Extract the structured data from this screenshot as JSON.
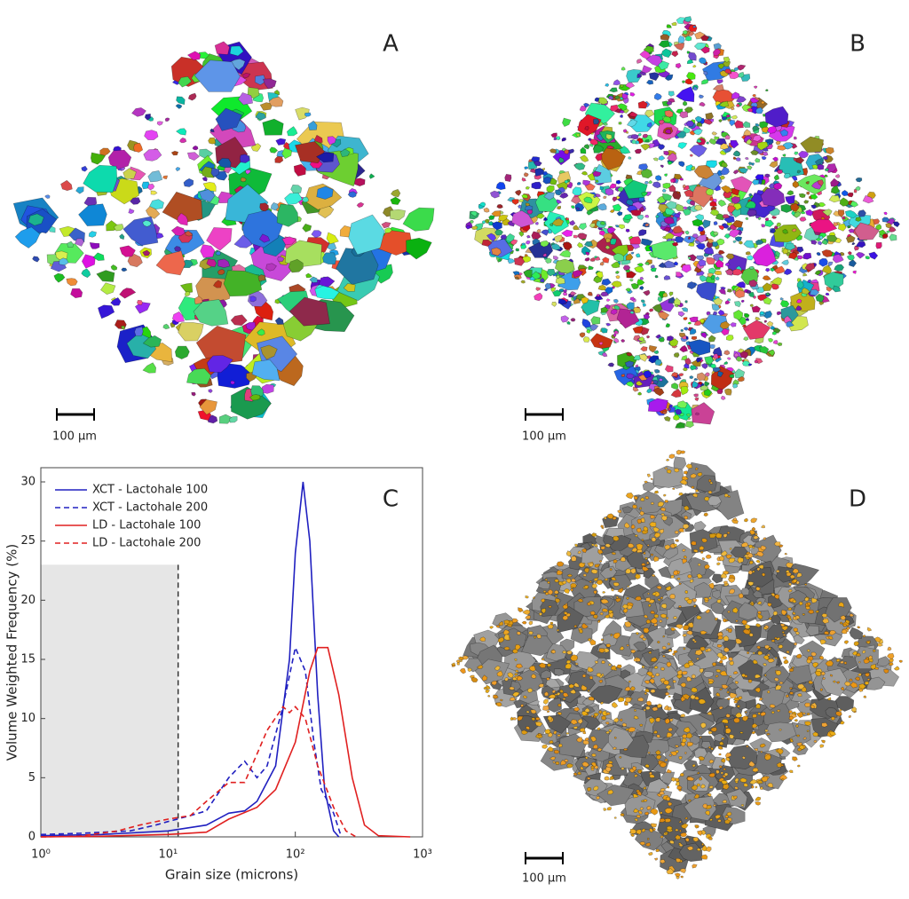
{
  "panels": {
    "a": {
      "label": "A",
      "scale_bar": "100 µm"
    },
    "b": {
      "label": "B",
      "scale_bar": "100 µm"
    },
    "d": {
      "label": "D",
      "scale_bar": "100 µm"
    }
  },
  "chart_data": {
    "type": "line",
    "label": "C",
    "xlabel": "Grain size (microns)",
    "ylabel": "Volume Weighted Frequency (%)",
    "xlog": true,
    "xlim": [
      1,
      1000
    ],
    "ylim": [
      0,
      31.2
    ],
    "xticks": [
      {
        "value": 1,
        "label": "10⁰"
      },
      {
        "value": 10,
        "label": "10¹"
      },
      {
        "value": 100,
        "label": "10²"
      },
      {
        "value": 1000,
        "label": "10³"
      }
    ],
    "yticks": [
      0,
      5,
      10,
      15,
      20,
      25,
      30
    ],
    "legend": "upper left",
    "shaded_region": {
      "xlim": [
        1,
        12
      ],
      "ylim": [
        0,
        23
      ],
      "color": "#e6e6e6"
    },
    "series": [
      {
        "name": "XCT - Lactohale 100",
        "color": "#2020c0",
        "dash": false,
        "x": [
          1,
          3,
          10,
          20,
          30,
          40,
          50,
          70,
          90,
          100,
          115,
          130,
          150,
          170,
          200,
          220
        ],
        "values": [
          0.1,
          0.2,
          0.5,
          1,
          2,
          2.2,
          3,
          6,
          15,
          24,
          30,
          25,
          12,
          4,
          0.5,
          0
        ]
      },
      {
        "name": "XCT - Lactohale 200",
        "color": "#2020c0",
        "dash": true,
        "x": [
          1,
          2,
          5,
          8,
          10,
          15,
          20,
          30,
          40,
          50,
          60,
          80,
          100,
          120,
          140,
          160,
          180,
          200,
          230
        ],
        "values": [
          0.2,
          0.3,
          0.5,
          1,
          1.3,
          1.8,
          2.2,
          5,
          6.4,
          5,
          6,
          11,
          16,
          14,
          8,
          4,
          3,
          2,
          0
        ]
      },
      {
        "name": "LD - Lactohale 100",
        "color": "#e02020",
        "dash": false,
        "x": [
          1,
          3,
          10,
          20,
          30,
          50,
          70,
          100,
          130,
          150,
          180,
          220,
          280,
          350,
          450,
          800
        ],
        "values": [
          0,
          0.05,
          0.2,
          0.4,
          1.5,
          2.5,
          4,
          8,
          14,
          16,
          16,
          12,
          5,
          1,
          0.1,
          0
        ]
      },
      {
        "name": "LD - Lactohale 200",
        "color": "#e02020",
        "dash": true,
        "x": [
          1,
          2,
          4,
          6,
          10,
          15,
          20,
          30,
          40,
          50,
          60,
          80,
          90,
          100,
          120,
          150,
          200,
          250,
          300
        ],
        "values": [
          0,
          0.05,
          0.5,
          1,
          1.5,
          1.8,
          3,
          4.6,
          4.6,
          7,
          9,
          11,
          10.5,
          11,
          10,
          6,
          2.5,
          0.5,
          0
        ]
      }
    ]
  }
}
